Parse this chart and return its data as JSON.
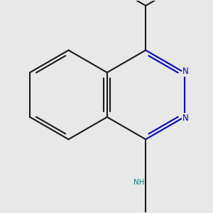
{
  "bg_color": "#e8e8e8",
  "bond_color": "#1a1a1a",
  "n_color": "#0000cc",
  "nh_color": "#008080",
  "lw": 1.5,
  "dbo": 0.028,
  "s": 0.38,
  "figsize": [
    3.0,
    3.0
  ],
  "dpi": 100,
  "xlim": [
    -0.7,
    1.05
  ],
  "ylim": [
    -0.95,
    0.85
  ]
}
